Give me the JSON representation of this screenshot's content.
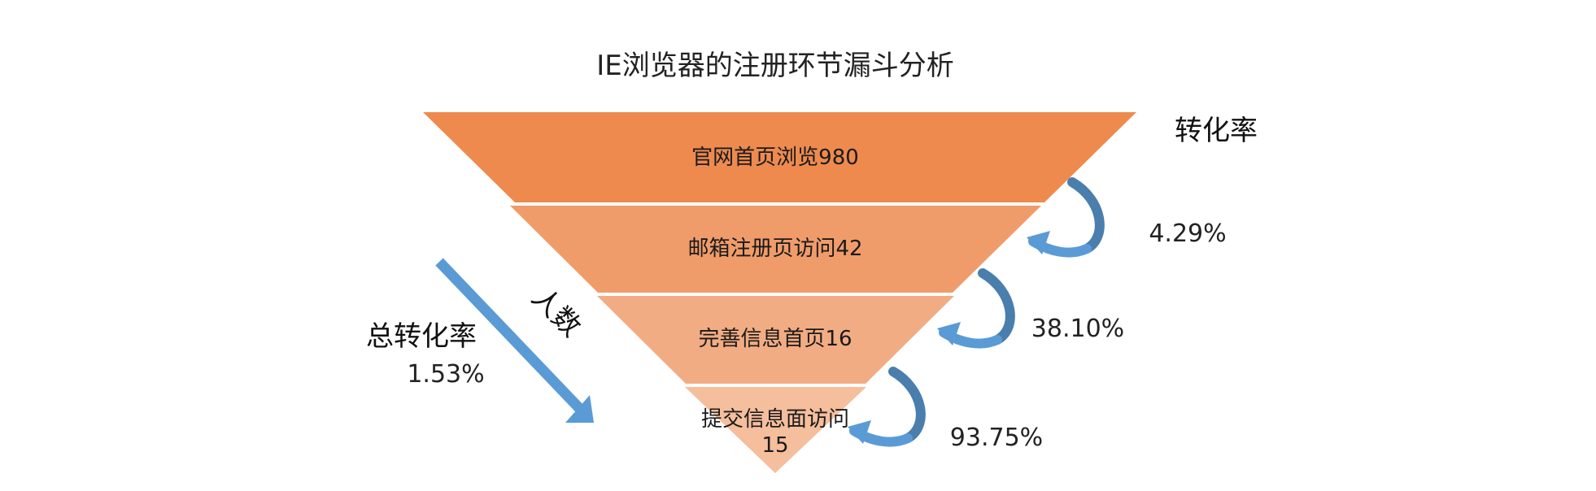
{
  "title": "IE浏览器的注册环节漏斗分析",
  "conversion_header": "转化率",
  "colors": {
    "stage1": "#EE8A4E",
    "stage2": "#F09C6A",
    "stage3": "#F2AC83",
    "stage4": "#F5BE9C",
    "arrow_dark": "#4A7EAD",
    "arrow_light": "#5B9BD5"
  },
  "funnel": {
    "stages": [
      {
        "label": "官网首页浏览980",
        "value": 980
      },
      {
        "label": "邮箱注册页访问42",
        "value": 42
      },
      {
        "label": "完善信息首页16",
        "value": 16
      },
      {
        "label_line1": "提交信息面访问",
        "label_line2": "15",
        "value": 15
      }
    ],
    "step_rates": [
      "4.29%",
      "38.10%",
      "93.75%"
    ]
  },
  "people_label": "人数",
  "total": {
    "label": "总转化率",
    "rate": "1.53%"
  }
}
